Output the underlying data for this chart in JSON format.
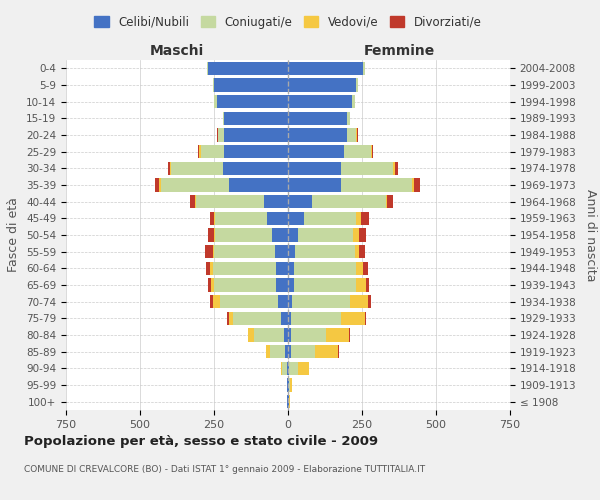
{
  "age_groups": [
    "100+",
    "95-99",
    "90-94",
    "85-89",
    "80-84",
    "75-79",
    "70-74",
    "65-69",
    "60-64",
    "55-59",
    "50-54",
    "45-49",
    "40-44",
    "35-39",
    "30-34",
    "25-29",
    "20-24",
    "15-19",
    "10-14",
    "5-9",
    "0-4"
  ],
  "birth_years": [
    "≤ 1908",
    "1909-1913",
    "1914-1918",
    "1919-1923",
    "1924-1928",
    "1929-1933",
    "1934-1938",
    "1939-1943",
    "1944-1948",
    "1949-1953",
    "1954-1958",
    "1959-1963",
    "1964-1968",
    "1969-1973",
    "1974-1978",
    "1979-1983",
    "1984-1988",
    "1989-1993",
    "1994-1998",
    "1999-2003",
    "2004-2008"
  ],
  "males": {
    "celibe": [
      2,
      2,
      5,
      10,
      15,
      25,
      35,
      40,
      40,
      45,
      55,
      70,
      80,
      200,
      220,
      215,
      215,
      215,
      240,
      250,
      270
    ],
    "coniugato": [
      0,
      3,
      15,
      50,
      100,
      160,
      195,
      210,
      215,
      205,
      190,
      175,
      230,
      230,
      175,
      80,
      20,
      5,
      10,
      5,
      5
    ],
    "vedovo": [
      0,
      0,
      5,
      15,
      20,
      15,
      25,
      10,
      8,
      5,
      5,
      5,
      5,
      5,
      5,
      5,
      3,
      0,
      0,
      0,
      0
    ],
    "divorziato": [
      0,
      0,
      0,
      0,
      0,
      5,
      10,
      10,
      15,
      25,
      20,
      15,
      15,
      15,
      5,
      5,
      3,
      0,
      0,
      0,
      0
    ]
  },
  "females": {
    "nubile": [
      2,
      2,
      5,
      10,
      10,
      10,
      15,
      20,
      20,
      25,
      35,
      55,
      80,
      180,
      180,
      190,
      200,
      200,
      215,
      230,
      255
    ],
    "coniugata": [
      2,
      5,
      30,
      80,
      120,
      170,
      195,
      210,
      210,
      200,
      185,
      175,
      250,
      240,
      175,
      90,
      30,
      10,
      10,
      5,
      5
    ],
    "vedova": [
      2,
      5,
      35,
      80,
      75,
      80,
      60,
      35,
      25,
      15,
      20,
      15,
      5,
      5,
      5,
      3,
      2,
      0,
      0,
      0,
      0
    ],
    "divorziata": [
      0,
      0,
      2,
      2,
      5,
      5,
      10,
      10,
      15,
      20,
      25,
      30,
      20,
      20,
      10,
      5,
      3,
      0,
      0,
      0,
      0
    ]
  },
  "colors": {
    "celibe": "#4472c4",
    "coniugato": "#c5d9a0",
    "vedovo": "#f5c842",
    "divorziato": "#c0392b"
  },
  "title": "Popolazione per età, sesso e stato civile - 2009",
  "subtitle": "COMUNE DI CREVALCORE (BO) - Dati ISTAT 1° gennaio 2009 - Elaborazione TUTTITALIA.IT",
  "xlabel_left": "Maschi",
  "xlabel_right": "Femmine",
  "ylabel_left": "Fasce di età",
  "ylabel_right": "Anni di nascita",
  "xlim": 750,
  "bg_color": "#f0f0f0",
  "plot_bg": "#ffffff",
  "grid_color": "#cccccc"
}
